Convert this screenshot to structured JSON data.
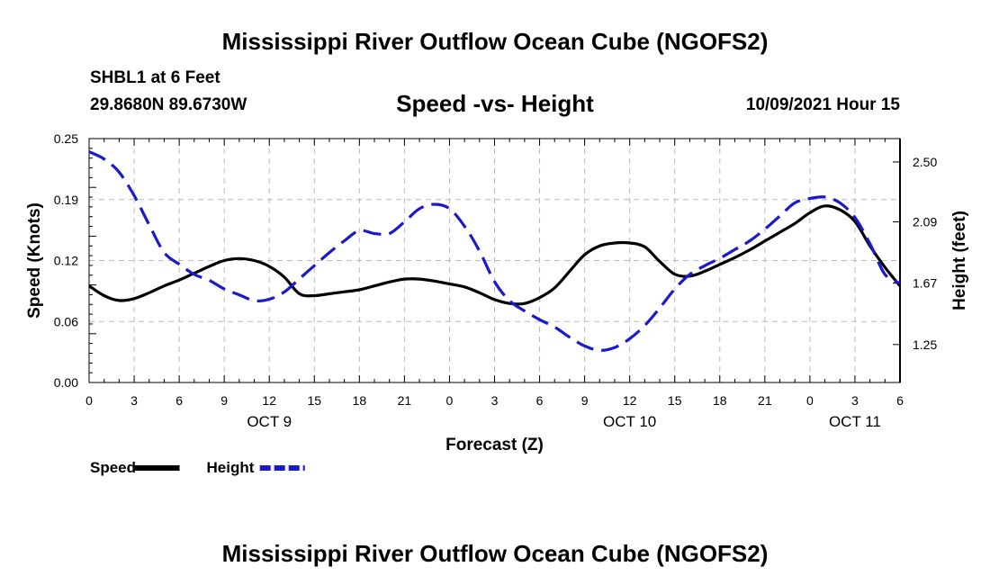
{
  "header": {
    "title": "Mississippi River Outflow Ocean Cube (NGOFS2)",
    "station": "SHBL1 at 6 Feet",
    "coords": "29.8680N  89.6730W",
    "subtitle": "Speed -vs- Height",
    "datetime": "10/09/2021 Hour 15"
  },
  "footer": {
    "title": "Mississippi River Outflow Ocean Cube (NGOFS2)"
  },
  "colors": {
    "speed": "#000000",
    "height": "#1a1acc",
    "grid": "#bbbbbb"
  },
  "chart_data": {
    "type": "line",
    "xlabel": "Forecast (Z)",
    "ylabel": "Speed (Knots)",
    "y2label": "Height (feet)",
    "grid": true,
    "legend": "bottom-left",
    "x_range_hours": [
      0,
      54
    ],
    "ylim": [
      0,
      0.25
    ],
    "y2lim": [
      0.99,
      2.66
    ],
    "x_tick_labels": [
      "0",
      "3",
      "6",
      "9",
      "12",
      "15",
      "18",
      "21",
      "0",
      "3",
      "6",
      "9",
      "12",
      "15",
      "18",
      "21",
      "0",
      "3",
      "6"
    ],
    "day_labels": [
      {
        "label": "OCT 9",
        "hour": 12
      },
      {
        "label": "OCT 10",
        "hour": 36
      },
      {
        "label": "OCT 11",
        "hour": 51
      }
    ],
    "y_ticks": [
      "0.00",
      "0.06",
      "0.12",
      "0.19",
      "0.25"
    ],
    "y_tick_values": [
      0,
      0.0625,
      0.125,
      0.1875,
      0.25
    ],
    "y2_ticks": [
      "1.25",
      "1.67",
      "2.09",
      "2.50"
    ],
    "y2_tick_values": [
      1.25,
      1.67,
      2.09,
      2.5
    ],
    "series": [
      {
        "name": "Speed",
        "axis": "left",
        "style": "solid",
        "x": [
          0,
          1,
          2,
          3,
          4,
          5,
          6,
          7,
          8,
          9,
          10,
          11,
          12,
          13,
          14,
          15,
          16,
          17,
          18,
          19,
          20,
          21,
          22,
          23,
          24,
          25,
          26,
          27,
          28,
          29,
          30,
          31,
          32,
          33,
          34,
          35,
          36,
          37,
          38,
          39,
          40,
          41,
          42,
          43,
          44,
          45,
          46,
          47,
          48,
          49,
          50,
          51,
          52,
          53,
          54
        ],
        "values": [
          0.099,
          0.089,
          0.084,
          0.086,
          0.092,
          0.099,
          0.105,
          0.112,
          0.119,
          0.125,
          0.127,
          0.125,
          0.119,
          0.108,
          0.091,
          0.089,
          0.091,
          0.093,
          0.095,
          0.099,
          0.103,
          0.106,
          0.106,
          0.104,
          0.101,
          0.098,
          0.092,
          0.085,
          0.081,
          0.081,
          0.087,
          0.097,
          0.114,
          0.131,
          0.14,
          0.143,
          0.143,
          0.139,
          0.124,
          0.111,
          0.109,
          0.114,
          0.121,
          0.128,
          0.136,
          0.145,
          0.154,
          0.163,
          0.174,
          0.181,
          0.177,
          0.165,
          0.14,
          0.118,
          0.099
        ]
      },
      {
        "name": "Height",
        "axis": "right",
        "style": "dashed",
        "x": [
          0,
          1,
          2,
          3,
          4,
          5,
          6,
          7,
          8,
          9,
          10,
          11,
          12,
          13,
          14,
          15,
          16,
          17,
          18,
          19,
          20,
          21,
          22,
          23,
          24,
          25,
          26,
          27,
          28,
          29,
          30,
          31,
          32,
          33,
          34,
          35,
          36,
          37,
          38,
          39,
          40,
          41,
          42,
          43,
          44,
          45,
          46,
          47,
          48,
          49,
          50,
          51,
          52,
          53,
          54
        ],
        "values": [
          2.57,
          2.52,
          2.43,
          2.27,
          2.07,
          1.88,
          1.8,
          1.73,
          1.69,
          1.63,
          1.59,
          1.55,
          1.56,
          1.61,
          1.7,
          1.79,
          1.88,
          1.96,
          2.03,
          2.01,
          2.01,
          2.09,
          2.18,
          2.21,
          2.18,
          2.06,
          1.89,
          1.68,
          1.55,
          1.48,
          1.42,
          1.37,
          1.3,
          1.24,
          1.21,
          1.23,
          1.29,
          1.38,
          1.5,
          1.63,
          1.73,
          1.79,
          1.84,
          1.9,
          1.96,
          2.04,
          2.13,
          2.22,
          2.25,
          2.26,
          2.22,
          2.12,
          1.94,
          1.73,
          1.67
        ]
      }
    ]
  }
}
